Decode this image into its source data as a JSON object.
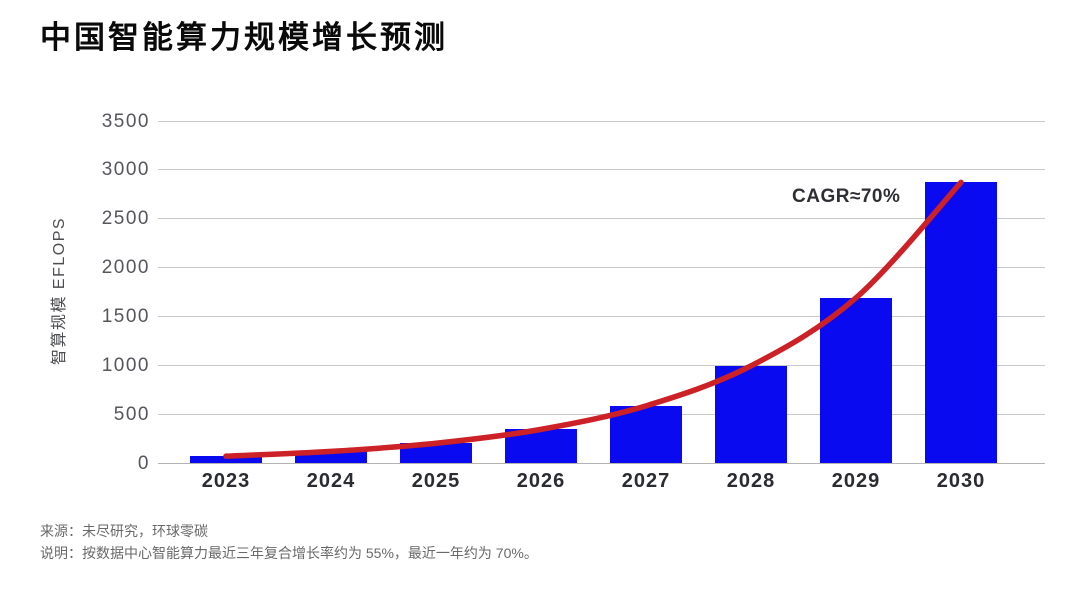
{
  "title": "中国智能算力规模增长预测",
  "annotation": "CAGR≈70%",
  "footer": {
    "source": "来源：未尽研究，环球零碳",
    "note": "说明：按数据中心智能算力最近三年复合增长率约为 55%，最近一年约为 70%。"
  },
  "colors": {
    "bar": "#0a0af0",
    "trend": "#cc2127",
    "grid": "#c9c9c9",
    "zero_line": "#b3b3b3",
    "ytick_text": "#55565b",
    "xtick_text": "#2b2c31",
    "title_text": "#0a0a0a",
    "footer_text": "#696969"
  },
  "chart_data": {
    "type": "bar",
    "categories": [
      "2023",
      "2024",
      "2025",
      "2026",
      "2027",
      "2028",
      "2029",
      "2030"
    ],
    "values": [
      70,
      119,
      202,
      344,
      585,
      994,
      1690,
      2872
    ],
    "title": "中国智能算力规模增长预测",
    "xlabel": "",
    "ylabel": "智算规模 EFLOPS",
    "ylim": [
      0,
      3500
    ],
    "yticks": [
      0,
      500,
      1000,
      1500,
      2000,
      2500,
      3000,
      3500
    ],
    "grid": true,
    "legend": false,
    "trendline": {
      "type": "exponential",
      "label": "CAGR≈70%",
      "cagr_percent": 70
    }
  }
}
